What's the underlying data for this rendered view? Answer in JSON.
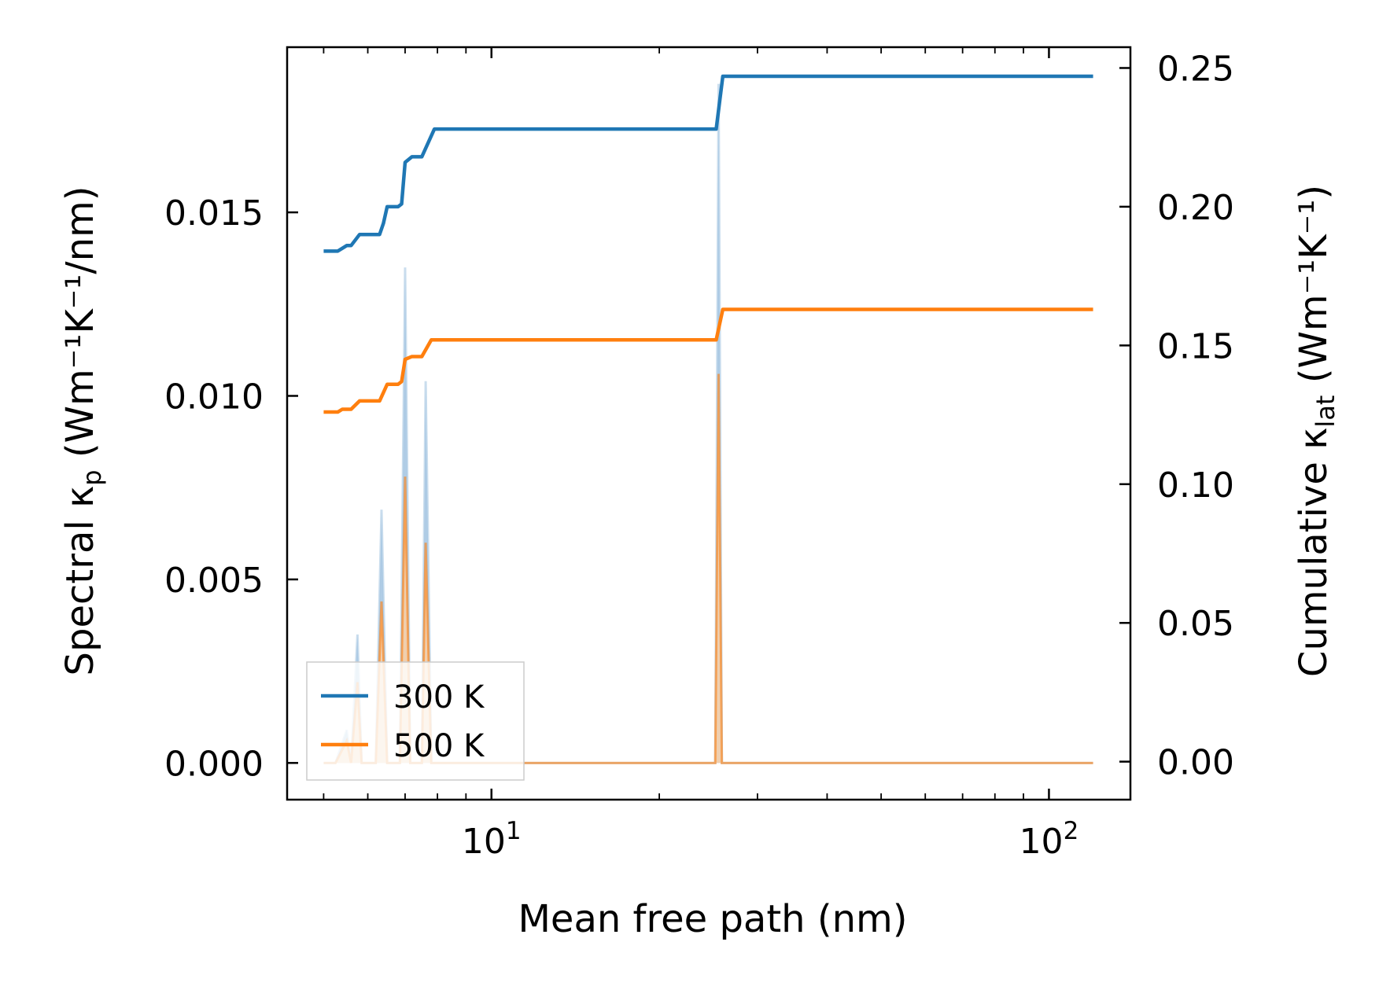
{
  "chart_data": {
    "type": "line",
    "xlabel": "Mean free path (nm)",
    "ylabel_left": "Spectral κ",
    "ylabel_left_sub": "p",
    "ylabel_left_unit": "(Wm⁻¹K⁻¹/nm)",
    "ylabel_right": "Cumulative κ",
    "ylabel_right_sub": "lat",
    "ylabel_right_unit": "(Wm⁻¹K⁻¹)",
    "x_scale": "log",
    "xlim": [
      4.3,
      140
    ],
    "ylim_left": [
      -0.001,
      0.0195
    ],
    "ylim_right": [
      -0.0137,
      0.2575
    ],
    "x_ticks": [
      {
        "base": "10",
        "exp": "1",
        "value": 10
      },
      {
        "base": "10",
        "exp": "2",
        "value": 100
      }
    ],
    "left_ticks": [
      {
        "value": 0.0,
        "label": "0.000"
      },
      {
        "value": 0.005,
        "label": "0.005"
      },
      {
        "value": 0.01,
        "label": "0.010"
      },
      {
        "value": 0.015,
        "label": "0.015"
      }
    ],
    "right_ticks": [
      {
        "value": 0.0,
        "label": "0.00"
      },
      {
        "value": 0.05,
        "label": "0.05"
      },
      {
        "value": 0.1,
        "label": "0.10"
      },
      {
        "value": 0.15,
        "label": "0.15"
      },
      {
        "value": 0.2,
        "label": "0.20"
      },
      {
        "value": 0.25,
        "label": "0.25"
      }
    ],
    "legend": {
      "placement": "lower-left",
      "entries": [
        "300 K",
        "500 K"
      ]
    },
    "colors": {
      "300 K": "#1f77b4",
      "500 K": "#ff7f0e",
      "spectral_300": "#a9c8e3",
      "spectral_500": "#f6cfa8"
    },
    "series": [
      {
        "name": "300 K",
        "axis": "right",
        "x": [
          5.0,
          5.3,
          5.4,
          5.5,
          5.6,
          5.8,
          6.2,
          6.3,
          6.4,
          6.5,
          6.8,
          6.9,
          7.0,
          7.2,
          7.3,
          7.5,
          7.9,
          8.0,
          25.3,
          26.0,
          120.0
        ],
        "y": [
          0.184,
          0.184,
          0.185,
          0.186,
          0.186,
          0.19,
          0.19,
          0.19,
          0.194,
          0.2,
          0.2,
          0.201,
          0.216,
          0.218,
          0.218,
          0.218,
          0.228,
          0.228,
          0.228,
          0.247,
          0.247
        ]
      },
      {
        "name": "500 K",
        "axis": "right",
        "x": [
          5.0,
          5.3,
          5.4,
          5.5,
          5.6,
          5.8,
          6.2,
          6.3,
          6.4,
          6.5,
          6.8,
          6.9,
          7.0,
          7.2,
          7.3,
          7.5,
          7.8,
          8.0,
          25.3,
          26.0,
          120.0
        ],
        "y": [
          0.126,
          0.126,
          0.127,
          0.127,
          0.127,
          0.13,
          0.13,
          0.13,
          0.133,
          0.136,
          0.136,
          0.137,
          0.145,
          0.146,
          0.146,
          0.146,
          0.152,
          0.152,
          0.152,
          0.163,
          0.163
        ]
      },
      {
        "name": "Spectral 300 K",
        "axis": "left",
        "x": [
          5.0,
          5.25,
          5.5,
          5.6,
          5.75,
          5.85,
          6.0,
          6.2,
          6.35,
          6.5,
          6.7,
          6.85,
          7.0,
          7.15,
          7.35,
          7.5,
          7.62,
          7.8,
          25.2,
          25.55,
          25.9,
          26.3,
          120.0
        ],
        "y": [
          0.0,
          0.0,
          0.0009,
          0.0,
          0.0035,
          0.0,
          0.0,
          0.0,
          0.0069,
          0.0,
          0.0,
          0.0,
          0.0135,
          0.0,
          0.0,
          0.0,
          0.0104,
          0.0,
          0.0,
          0.0185,
          0.0,
          0.0,
          0.0
        ]
      },
      {
        "name": "Spectral 500 K",
        "axis": "left",
        "x": [
          5.0,
          5.25,
          5.5,
          5.6,
          5.75,
          5.85,
          6.0,
          6.2,
          6.35,
          6.5,
          6.7,
          6.85,
          7.0,
          7.15,
          7.35,
          7.5,
          7.62,
          7.8,
          25.2,
          25.55,
          25.9,
          26.3,
          120.0
        ],
        "y": [
          0.0,
          0.0,
          0.0006,
          0.0,
          0.0022,
          0.0,
          0.0,
          0.0,
          0.0044,
          0.0,
          0.0,
          0.0,
          0.0078,
          0.0,
          0.0,
          0.0,
          0.006,
          0.0,
          0.0,
          0.0106,
          0.0,
          0.0,
          0.0
        ]
      }
    ]
  }
}
